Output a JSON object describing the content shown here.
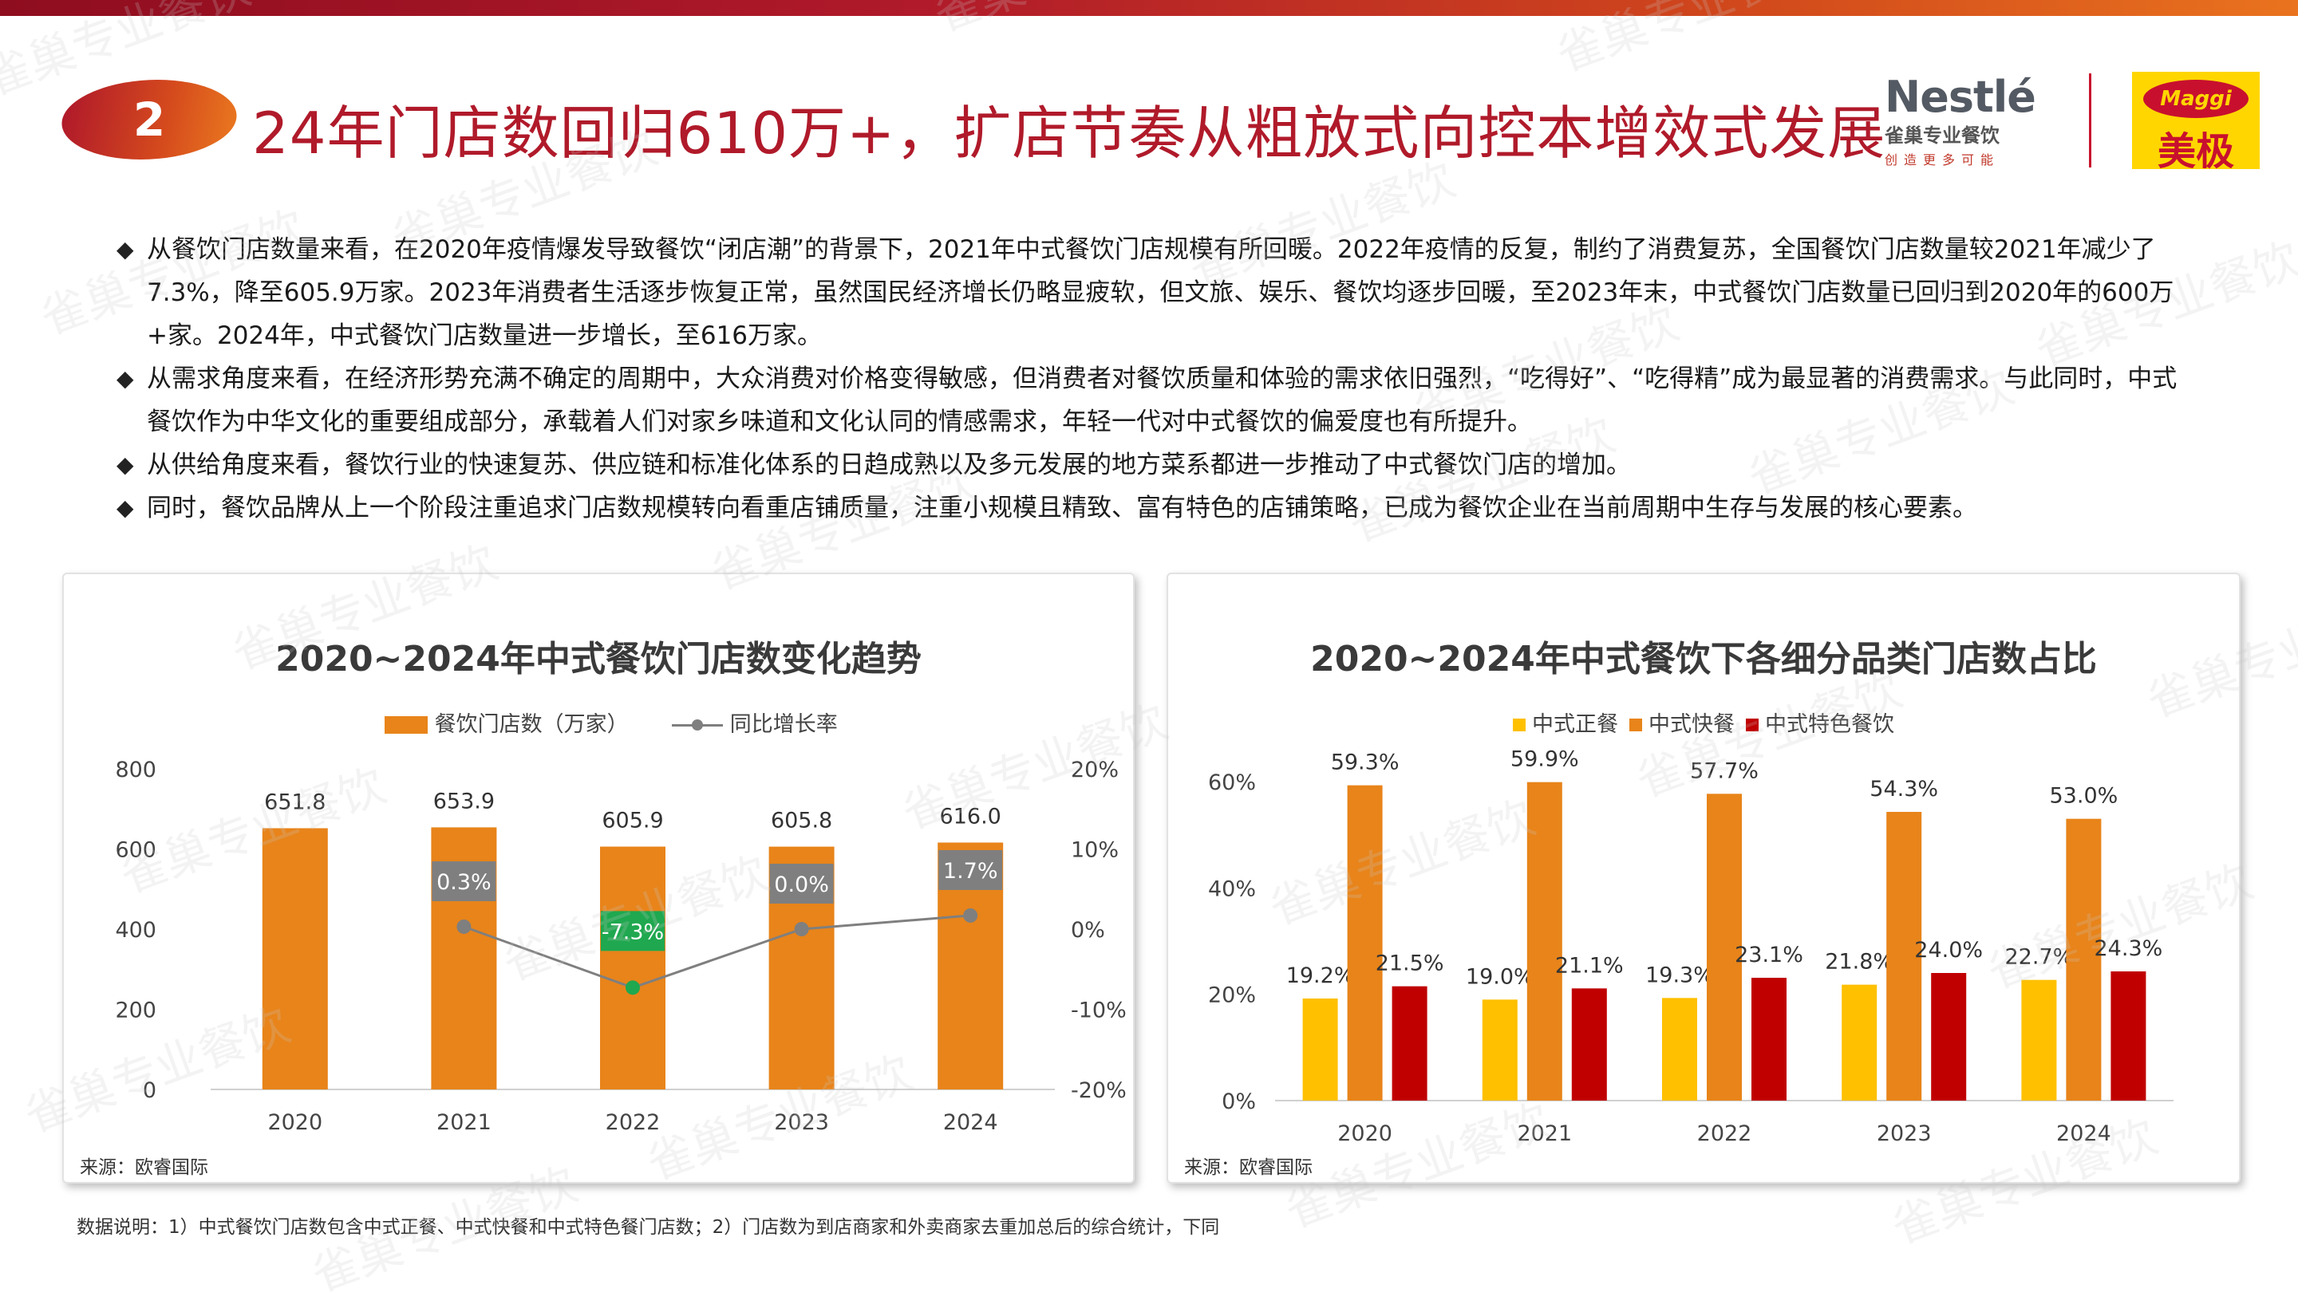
{
  "header": {
    "badge_number": "2",
    "title": "24年门店数回归610万+，扩店节奏从粗放式向控本增效式发展",
    "nestle_brand": "Nestlé",
    "nestle_sub": "雀巢专业餐饮",
    "nestle_tagline": "创造更多可能",
    "maggi_brand": "Maggi",
    "maggi_cn": "美极"
  },
  "bullets": [
    "从餐饮门店数量来看，在2020年疫情爆发导致餐饮“闭店潮”的背景下，2021年中式餐饮门店规模有所回暖。2022年疫情的反复，制约了消费复苏，全国餐饮门店数量较2021年减少了7.3%，降至605.9万家。2023年消费者生活逐步恢复正常，虽然国民经济增长仍略显疲软，但文旅、娱乐、餐饮均逐步回暖，至2023年末，中式餐饮门店数量已回归到2020年的600万+家。2024年，中式餐饮门店数量进一步增长，至616万家。",
    "从需求角度来看，在经济形势充满不确定的周期中，大众消费对价格变得敏感，但消费者对餐饮质量和体验的需求依旧强烈，“吃得好”、“吃得精”成为最显著的消费需求。与此同时，中式餐饮作为中华文化的重要组成部分，承载着人们对家乡味道和文化认同的情感需求，年轻一代对中式餐饮的偏爱度也有所提升。",
    "从供给角度来看，餐饮行业的快速复苏、供应链和标准化体系的日趋成熟以及多元发展的地方菜系都进一步推动了中式餐饮门店的增加。",
    "同时，餐饮品牌从上一个阶段注重追求门店数规模转向看重店铺质量，注重小规模且精致、富有特色的店铺策略，已成为餐饮企业在当前周期中生存与发展的核心要素。"
  ],
  "charts": {
    "left": {
      "title": "2020~2024年中式餐饮门店数变化趋势",
      "legend_bar": "餐饮门店数（万家）",
      "legend_line": "同比增长率",
      "source": "来源：欧睿国际",
      "bar_color": "#e8841a",
      "line_color": "#7f7f7f",
      "neg_label_color": "#1fa84f",
      "left_ticks": [
        "800",
        "600",
        "400",
        "200",
        "0"
      ],
      "right_ticks": [
        "20%",
        "10%",
        "0%",
        "-10%",
        "-20%"
      ]
    },
    "right": {
      "title": "2020~2024年中式餐饮下各细分品类门店数占比",
      "source": "来源：欧睿国际",
      "y_ticks": [
        "60%",
        "40%",
        "20%",
        "0%"
      ]
    }
  },
  "chart_data": [
    {
      "type": "bar",
      "title": "2020~2024年中式餐饮门店数变化趋势",
      "categories": [
        "2020",
        "2021",
        "2022",
        "2023",
        "2024"
      ],
      "series": [
        {
          "name": "餐饮门店数（万家）",
          "type": "bar",
          "values": [
            651.8,
            653.9,
            605.9,
            605.8,
            616.0
          ],
          "labels": [
            "651.8",
            "653.9",
            "605.9",
            "605.8",
            "616.0"
          ],
          "color": "#e8841a"
        },
        {
          "name": "同比增长率",
          "type": "line",
          "axis": "right",
          "values": [
            null,
            0.3,
            -7.3,
            0.0,
            1.7
          ],
          "labels": [
            "",
            "0.3%",
            "-7.3%",
            "0.0%",
            "1.7%"
          ],
          "color": "#7f7f7f"
        }
      ],
      "ylim": [
        0,
        800
      ],
      "y2lim": [
        -20,
        20
      ],
      "legend": "top"
    },
    {
      "type": "bar",
      "title": "2020~2024年中式餐饮下各细分品类门店数占比",
      "categories": [
        "2020",
        "2021",
        "2022",
        "2023",
        "2024"
      ],
      "series": [
        {
          "name": "中式正餐",
          "values": [
            19.2,
            19.0,
            19.3,
            21.8,
            22.7
          ],
          "labels": [
            "19.2%",
            "19.0%",
            "19.3%",
            "21.8%",
            "22.7%"
          ],
          "color": "#ffc000"
        },
        {
          "name": "中式快餐",
          "values": [
            59.3,
            59.9,
            57.7,
            54.3,
            53.0
          ],
          "labels": [
            "59.3%",
            "59.9%",
            "57.7%",
            "54.3%",
            "53.0%"
          ],
          "color": "#e8841a"
        },
        {
          "name": "中式特色餐饮",
          "values": [
            21.5,
            21.1,
            23.1,
            24.0,
            24.3
          ],
          "labels": [
            "21.5%",
            "21.1%",
            "23.1%",
            "24.0%",
            "24.3%"
          ],
          "color": "#c00000"
        }
      ],
      "ylim": [
        0,
        60
      ],
      "legend": "top"
    }
  ],
  "footer": {
    "note": "数据说明：1）中式餐饮门店数包含中式正餐、中式快餐和中式特色餐门店数；2）门店数为到店商家和外卖商家去重加总后的综合统计，下同"
  },
  "watermark": "雀巢专业餐饮"
}
